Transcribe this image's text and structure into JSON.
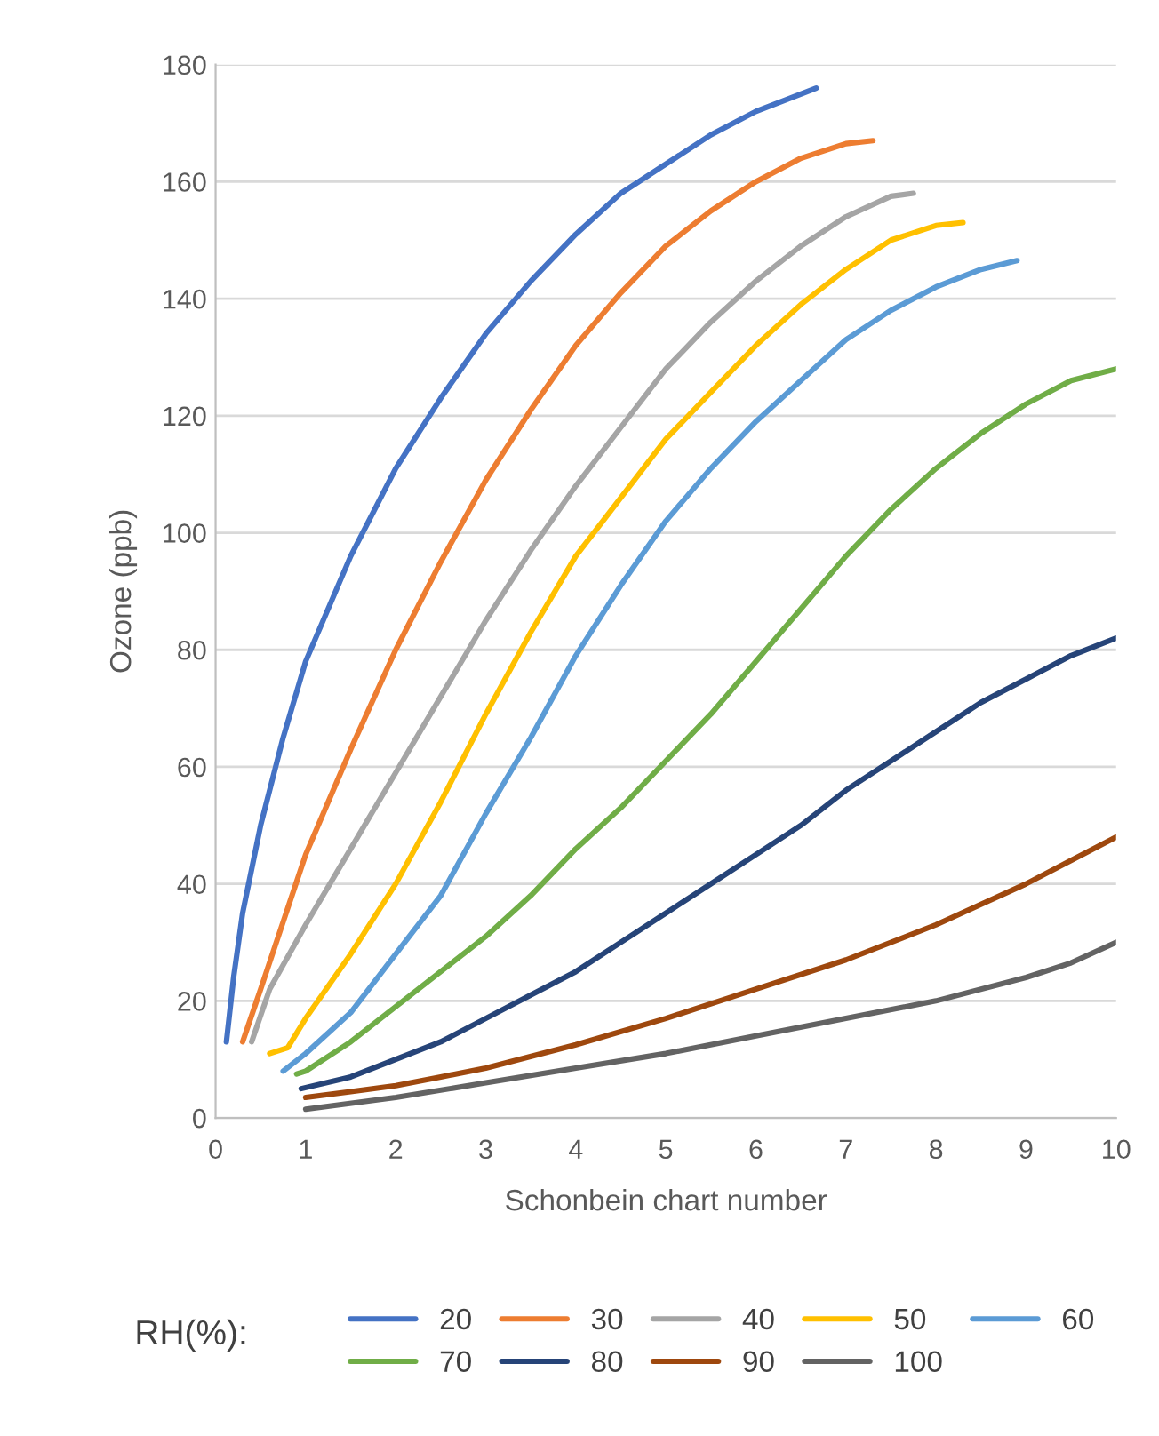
{
  "chart_data": {
    "type": "line",
    "xlabel": "Schonbein chart number",
    "ylabel": "Ozone (ppb)",
    "legend_title": "RH(%):",
    "xlim": [
      0,
      10
    ],
    "xticks": [
      0,
      1,
      2,
      3,
      4,
      5,
      6,
      7,
      8,
      9,
      10
    ],
    "ylim": [
      0,
      180
    ],
    "yticks": [
      0,
      20,
      40,
      60,
      80,
      100,
      120,
      140,
      160,
      180
    ],
    "grid": "y",
    "legend": "bottom",
    "marker": "none",
    "line_style": "solid",
    "series": [
      {
        "name": "20",
        "color": "#4472c4",
        "x": [
          0.12,
          0.2,
          0.3,
          0.5,
          0.75,
          1,
          1.5,
          2,
          2.5,
          3,
          3.5,
          4,
          4.5,
          5,
          5.5,
          6,
          6.67
        ],
        "values": [
          13,
          24,
          35,
          50,
          65,
          78,
          96,
          111,
          123,
          134,
          143,
          151,
          158,
          163,
          168,
          172,
          176
        ]
      },
      {
        "name": "30",
        "color": "#ed7d31",
        "x": [
          0.3,
          0.5,
          1,
          1.5,
          2,
          2.5,
          3,
          3.5,
          4,
          4.5,
          5,
          5.5,
          6,
          6.5,
          7,
          7.3
        ],
        "values": [
          13,
          22,
          45,
          63,
          80,
          95,
          109,
          121,
          132,
          141,
          149,
          155,
          160,
          164,
          166.5,
          167
        ]
      },
      {
        "name": "40",
        "color": "#a5a5a5",
        "x": [
          0.4,
          0.6,
          1,
          1.5,
          2,
          2.5,
          3,
          3.5,
          4,
          4.5,
          5,
          5.5,
          6,
          6.5,
          7,
          7.5,
          7.75
        ],
        "values": [
          13,
          22,
          33,
          46,
          59,
          72,
          85,
          97,
          108,
          118,
          128,
          136,
          143,
          149,
          154,
          157.5,
          158
        ]
      },
      {
        "name": "50",
        "color": "#ffc000",
        "x": [
          0.6,
          0.8,
          1,
          1.5,
          2,
          2.5,
          3,
          3.5,
          4,
          4.5,
          5,
          5.5,
          6,
          6.5,
          7,
          7.5,
          8,
          8.3
        ],
        "values": [
          11,
          12,
          17,
          28,
          40,
          54,
          69,
          83,
          96,
          106,
          116,
          124,
          132,
          139,
          145,
          150,
          152.5,
          153
        ]
      },
      {
        "name": "60",
        "color": "#5b9bd5",
        "x": [
          0.75,
          1,
          1.5,
          2,
          2.5,
          3,
          3.5,
          4,
          4.5,
          5,
          5.5,
          6,
          6.5,
          7,
          7.5,
          8,
          8.5,
          8.9
        ],
        "values": [
          8,
          11,
          18,
          28,
          38,
          52,
          65,
          79,
          91,
          102,
          111,
          119,
          126,
          133,
          138,
          142,
          145,
          146.5
        ]
      },
      {
        "name": "70",
        "color": "#70ad47",
        "x": [
          0.9,
          1,
          1.5,
          2,
          2.5,
          3,
          3.5,
          4,
          4.5,
          5,
          5.5,
          6,
          6.5,
          7,
          7.5,
          8,
          8.5,
          9,
          9.5,
          10
        ],
        "values": [
          7.5,
          8,
          13,
          19,
          25,
          31,
          38,
          46,
          53,
          61,
          69,
          78,
          87,
          96,
          104,
          111,
          117,
          122,
          126,
          128
        ]
      },
      {
        "name": "80",
        "color": "#264478",
        "x": [
          0.95,
          1.5,
          2,
          2.5,
          3,
          3.5,
          4,
          4.5,
          5,
          5.5,
          6,
          6.5,
          7,
          7.5,
          8,
          8.5,
          9,
          9.5,
          10
        ],
        "values": [
          5,
          7,
          10,
          13,
          17,
          21,
          25,
          30,
          35,
          40,
          45,
          50,
          56,
          61,
          66,
          71,
          75,
          79,
          82
        ]
      },
      {
        "name": "90",
        "color": "#9e480e",
        "x": [
          1,
          1.5,
          2,
          2.5,
          3,
          4,
          5,
          6,
          7,
          8,
          9,
          9.5,
          10
        ],
        "values": [
          3.5,
          4.5,
          5.5,
          7,
          8.5,
          12.5,
          17,
          22,
          27,
          33,
          40,
          44,
          48
        ]
      },
      {
        "name": "100",
        "color": "#636363",
        "x": [
          1,
          2,
          3,
          4,
          5,
          6,
          7,
          8,
          9,
          9.5,
          10
        ],
        "values": [
          1.5,
          3.5,
          6,
          8.5,
          11,
          14,
          17,
          20,
          24,
          26.5,
          30
        ]
      }
    ]
  }
}
